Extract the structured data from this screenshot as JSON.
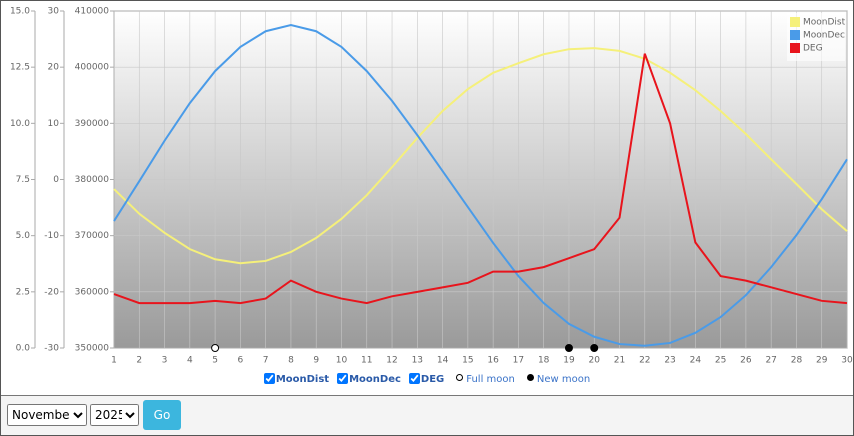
{
  "chart_data": {
    "type": "line",
    "x": [
      1,
      2,
      3,
      4,
      5,
      6,
      7,
      8,
      9,
      10,
      11,
      12,
      13,
      14,
      15,
      16,
      17,
      18,
      19,
      20,
      21,
      22,
      23,
      24,
      25,
      26,
      27,
      28,
      29,
      30
    ],
    "xlim": [
      1,
      30
    ],
    "ylim": [
      0,
      15
    ],
    "yticks": [
      {
        "value": 0,
        "label": "0.0"
      },
      2.5,
      {
        "value": 5,
        "label": "5.0"
      },
      7.5,
      {
        "value": 10,
        "label": "10.0"
      },
      12.5,
      {
        "value": 15,
        "label": "15.0"
      }
    ],
    "y2lim": [
      -30,
      30
    ],
    "y2ticks": [
      -30,
      -20,
      -10,
      0,
      10,
      20,
      30
    ],
    "y3lim": [
      350000,
      410000
    ],
    "y3ticks": [
      350000,
      360000,
      370000,
      380000,
      390000,
      400000,
      410000
    ],
    "grid": true,
    "legend": "top-right",
    "series": [
      {
        "name": "MoonDist",
        "color": "#f5f07a",
        "axis": "y3",
        "values": [
          378300,
          373900,
          370500,
          367600,
          365800,
          365100,
          365500,
          367100,
          369600,
          373000,
          377200,
          382200,
          387400,
          392200,
          396100,
          399000,
          400700,
          402300,
          403200,
          403400,
          402900,
          401500,
          399000,
          395900,
          392200,
          388100,
          383600,
          379200,
          374700,
          370800
        ]
      },
      {
        "name": "MoonDec",
        "color": "#4a9be8",
        "axis": "y2",
        "values": [
          -7.4,
          -0.3,
          6.9,
          13.6,
          19.3,
          23.6,
          26.4,
          27.5,
          26.4,
          23.6,
          19.3,
          14.0,
          7.9,
          1.5,
          -4.9,
          -11.3,
          -17.2,
          -22.0,
          -25.7,
          -28.0,
          -29.3,
          -29.6,
          -29.1,
          -27.3,
          -24.5,
          -20.6,
          -15.6,
          -9.9,
          -3.5,
          3.6
        ]
      },
      {
        "name": "DEG",
        "color": "#e8141c",
        "axis": "y",
        "values": [
          2.4,
          2.0,
          2.0,
          2.0,
          2.1,
          2.0,
          2.2,
          3.0,
          2.5,
          2.2,
          2.0,
          2.3,
          2.5,
          2.7,
          2.9,
          3.4,
          3.4,
          3.6,
          4.0,
          4.4,
          5.8,
          13.1,
          10.0,
          4.7,
          3.2,
          3.0,
          2.7,
          2.4,
          2.1,
          2.0
        ]
      }
    ],
    "phases": [
      {
        "name": "Full moon",
        "color": "#ffffff",
        "x": [
          5
        ]
      },
      {
        "name": "New moon",
        "color": "#000000",
        "x": [
          19,
          20
        ]
      }
    ]
  },
  "controls": {
    "month": "November",
    "year": "2025",
    "button": "Go"
  }
}
